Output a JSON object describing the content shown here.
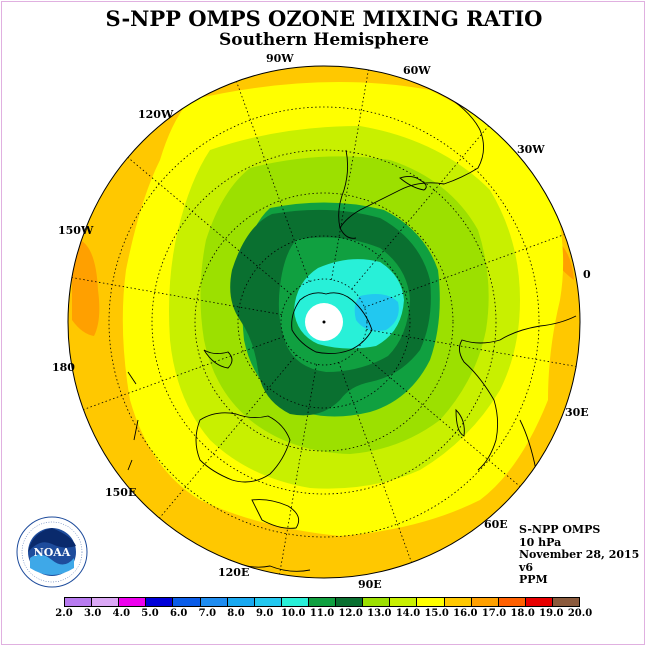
{
  "title": "S-NPP OMPS OZONE MIXING RATIO",
  "subtitle": "Southern Hemisphere",
  "longitude_labels": [
    "90W",
    "60W",
    "30W",
    "0",
    "30E",
    "60E",
    "90E",
    "120E",
    "150E",
    "180",
    "150W",
    "120W"
  ],
  "info": {
    "instrument": "S-NPP OMPS",
    "level": "10 hPa",
    "date": "November 28, 2015",
    "version": "v6",
    "units": "PPM"
  },
  "logo": {
    "name": "noaa-logo",
    "text": "NOAA"
  },
  "colorbar": {
    "ticks": [
      "2.0",
      "3.0",
      "4.0",
      "5.0",
      "6.0",
      "7.0",
      "8.0",
      "9.0",
      "10.0",
      "11.0",
      "12.0",
      "13.0",
      "14.0",
      "15.0",
      "16.0",
      "17.0",
      "18.0",
      "19.0",
      "20.0"
    ],
    "colors": [
      "#b87bf0",
      "#dba8f5",
      "#ee00ee",
      "#0000d8",
      "#0a5ce8",
      "#1e8cf0",
      "#18a8f0",
      "#22c8f0",
      "#28f0d8",
      "#10a040",
      "#0a7030",
      "#9ce000",
      "#c8f000",
      "#ffff00",
      "#ffc800",
      "#ffa000",
      "#ff6000",
      "#e80000",
      "#8b5a3c"
    ]
  },
  "colors": {
    "outer": "#ffc800",
    "outer_dark": "#ffa000",
    "band_yellow": "#ffff00",
    "band_yellow_green": "#c8f000",
    "band_green": "#9ce000",
    "band_mid_green": "#10a040",
    "band_dark_green": "#0a7030",
    "core_cyan": "#28f0d8",
    "core_blue": "#22c8f0",
    "pole_hole": "#ffffff"
  }
}
